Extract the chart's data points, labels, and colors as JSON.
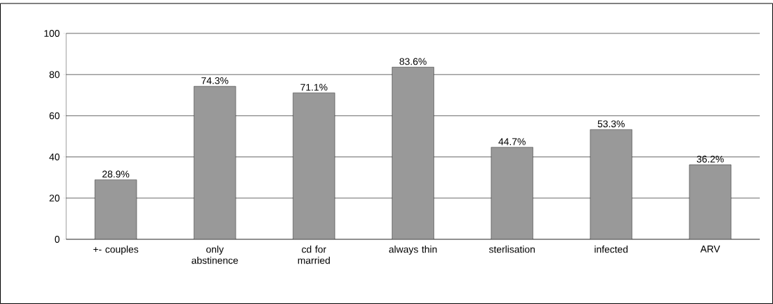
{
  "chart_data": {
    "type": "bar",
    "categories": [
      "+- couples",
      "only abstinence",
      "cd for married",
      "always thin",
      "sterlisation",
      "infected",
      "ARV"
    ],
    "values": [
      28.9,
      74.3,
      71.1,
      83.6,
      44.7,
      53.3,
      36.2
    ],
    "value_labels": [
      "28.9%",
      "74.3%",
      "71.1%",
      "83.6%",
      "44.7%",
      "53.3%",
      "36.2%"
    ],
    "color": "#999999",
    "ylim": [
      0,
      100
    ],
    "yticks": [
      0,
      20,
      40,
      60,
      80,
      100
    ],
    "grid": "y"
  }
}
